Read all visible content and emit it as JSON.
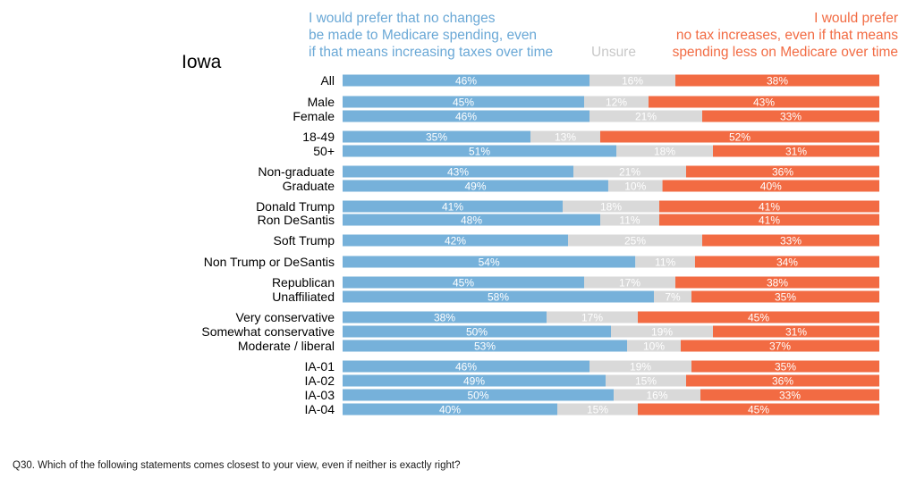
{
  "chart_data": {
    "type": "bar",
    "stacked": true,
    "orientation": "horizontal",
    "region_label": "Iowa",
    "question": "Q30. Which of the following statements comes closest to your view, even if neither is exactly right?",
    "series": [
      {
        "name": "I would prefer that no changes\nbe made to Medicare spending, even\nif that means increasing taxes over time",
        "color": "#76b1da"
      },
      {
        "name": "Unsure",
        "color": "#d9d9d9"
      },
      {
        "name": "I would prefer\nno tax increases, even if that means\nspending less on Medicare over time",
        "color": "#f26b43"
      }
    ],
    "rows": [
      {
        "label": "All",
        "values": [
          46,
          16,
          38
        ],
        "labels": [
          "46%",
          "16%",
          "38%"
        ]
      },
      {
        "label": "Male",
        "values": [
          45,
          12,
          43
        ],
        "labels": [
          "45%",
          "12%",
          "43%"
        ]
      },
      {
        "label": "Female",
        "values": [
          46,
          21,
          33
        ],
        "labels": [
          "46%",
          "21%",
          "33%"
        ]
      },
      {
        "label": "18-49",
        "values": [
          35,
          13,
          52
        ],
        "labels": [
          "35%",
          "13%",
          "52%"
        ]
      },
      {
        "label": "50+",
        "values": [
          51,
          18,
          31
        ],
        "labels": [
          "51%",
          "18%",
          "31%"
        ]
      },
      {
        "label": "Non-graduate",
        "values": [
          43,
          21,
          36
        ],
        "labels": [
          "43%",
          "21%",
          "36%"
        ]
      },
      {
        "label": "Graduate",
        "values": [
          49,
          10,
          40
        ],
        "labels": [
          "49%",
          "10%",
          "40%"
        ]
      },
      {
        "label": "Donald Trump",
        "values": [
          41,
          18,
          41
        ],
        "labels": [
          "41%",
          "18%",
          "41%"
        ]
      },
      {
        "label": "Ron DeSantis",
        "values": [
          48,
          11,
          41
        ],
        "labels": [
          "48%",
          "11%",
          "41%"
        ]
      },
      {
        "label": "Soft Trump",
        "values": [
          42,
          25,
          33
        ],
        "labels": [
          "42%",
          "25%",
          "33%"
        ]
      },
      {
        "label": "Non Trump or DeSantis",
        "values": [
          54,
          11,
          34
        ],
        "labels": [
          "54%",
          "11%",
          "34%"
        ]
      },
      {
        "label": "Republican",
        "values": [
          45,
          17,
          38
        ],
        "labels": [
          "45%",
          "17%",
          "38%"
        ]
      },
      {
        "label": "Unaffiliated",
        "values": [
          58,
          7,
          35
        ],
        "labels": [
          "58%",
          "7%",
          "35%"
        ]
      },
      {
        "label": "Very conservative",
        "values": [
          38,
          17,
          45
        ],
        "labels": [
          "38%",
          "17%",
          "45%"
        ]
      },
      {
        "label": "Somewhat conservative",
        "values": [
          50,
          19,
          31
        ],
        "labels": [
          "50%",
          "19%",
          "31%"
        ]
      },
      {
        "label": "Moderate / liberal",
        "values": [
          53,
          10,
          37
        ],
        "labels": [
          "53%",
          "10%",
          "37%"
        ]
      },
      {
        "label": "IA-01",
        "values": [
          46,
          19,
          35
        ],
        "labels": [
          "46%",
          "19%",
          "35%"
        ]
      },
      {
        "label": "IA-02",
        "values": [
          49,
          15,
          36
        ],
        "labels": [
          "49%",
          "15%",
          "36%"
        ]
      },
      {
        "label": "IA-03",
        "values": [
          50,
          16,
          33
        ],
        "labels": [
          "50%",
          "16%",
          "33%"
        ]
      },
      {
        "label": "IA-04",
        "values": [
          40,
          15,
          45
        ],
        "labels": [
          "40%",
          "15%",
          "45%"
        ]
      }
    ],
    "xlim": [
      0,
      100
    ]
  }
}
